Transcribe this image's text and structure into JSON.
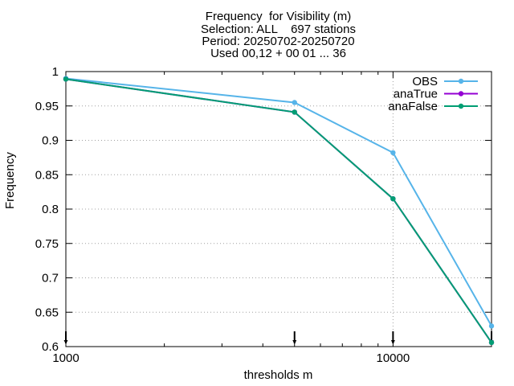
{
  "title_lines": [
    "Frequency  for Visibility (m)",
    "Selection: ALL    697 stations",
    "Period: 20250702-20250720",
    "Used 00,12 + 00 01 ... 36"
  ],
  "chart_data": {
    "type": "line",
    "xlabel": "thresholds m",
    "ylabel": "Frequency",
    "xscale": "log",
    "xlim": [
      1000,
      20000
    ],
    "ylim": [
      0.6,
      1.0
    ],
    "yticks": [
      "0.6",
      "0.65",
      "0.7",
      "0.75",
      "0.8",
      "0.85",
      "0.9",
      "0.95",
      "1"
    ],
    "xticks": [
      "1000",
      "10000"
    ],
    "grid": true,
    "legend_position": "top-right",
    "x": [
      1000,
      5000,
      10000,
      20000
    ],
    "series": [
      {
        "name": "OBS",
        "color": "#56b4e9",
        "values": [
          0.99,
          0.955,
          0.882,
          0.63
        ]
      },
      {
        "name": "anaTrue",
        "color": "#9400d3",
        "values": [
          0.989,
          0.941,
          0.815,
          0.606
        ]
      },
      {
        "name": "anaFalse",
        "color": "#009e73",
        "values": [
          0.989,
          0.941,
          0.815,
          0.606
        ]
      }
    ]
  }
}
